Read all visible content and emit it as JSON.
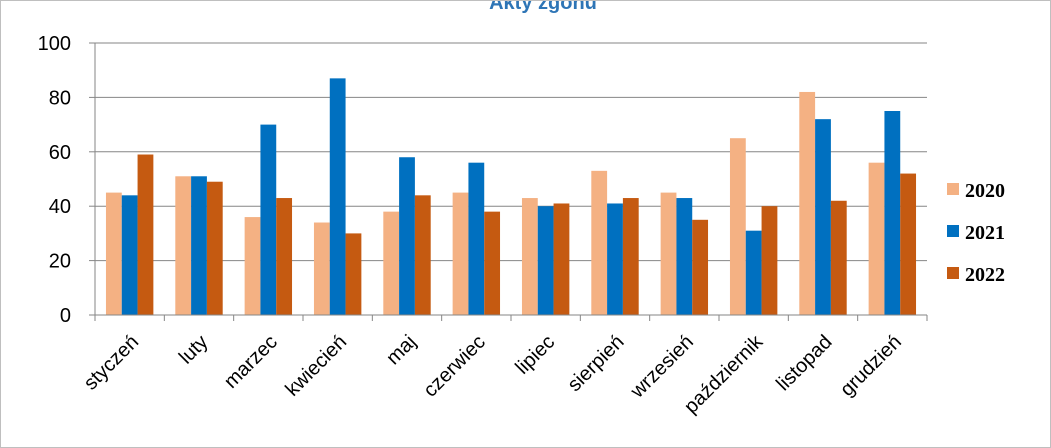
{
  "chart_data": {
    "type": "bar",
    "title": "Akty zgonu",
    "xlabel": "",
    "ylabel": "",
    "categories": [
      "styczeń",
      "luty",
      "marzec",
      "kwiecień",
      "maj",
      "czerwiec",
      "lipiec",
      "sierpień",
      "wrzesień",
      "październik",
      "listopad",
      "grudzień"
    ],
    "series": [
      {
        "name": "2020",
        "color": "#f4b183",
        "values": [
          45,
          51,
          36,
          34,
          38,
          45,
          43,
          53,
          45,
          65,
          82,
          56
        ]
      },
      {
        "name": "2021",
        "color": "#0070c0",
        "values": [
          44,
          51,
          70,
          87,
          58,
          56,
          40,
          41,
          43,
          31,
          72,
          75
        ]
      },
      {
        "name": "2022",
        "color": "#c55a11",
        "values": [
          59,
          49,
          43,
          30,
          44,
          38,
          41,
          43,
          35,
          40,
          42,
          52
        ]
      }
    ],
    "ylim": [
      0,
      100
    ],
    "yticks": [
      0,
      20,
      40,
      60,
      80,
      100
    ],
    "grid": true,
    "legend_position": "right"
  }
}
